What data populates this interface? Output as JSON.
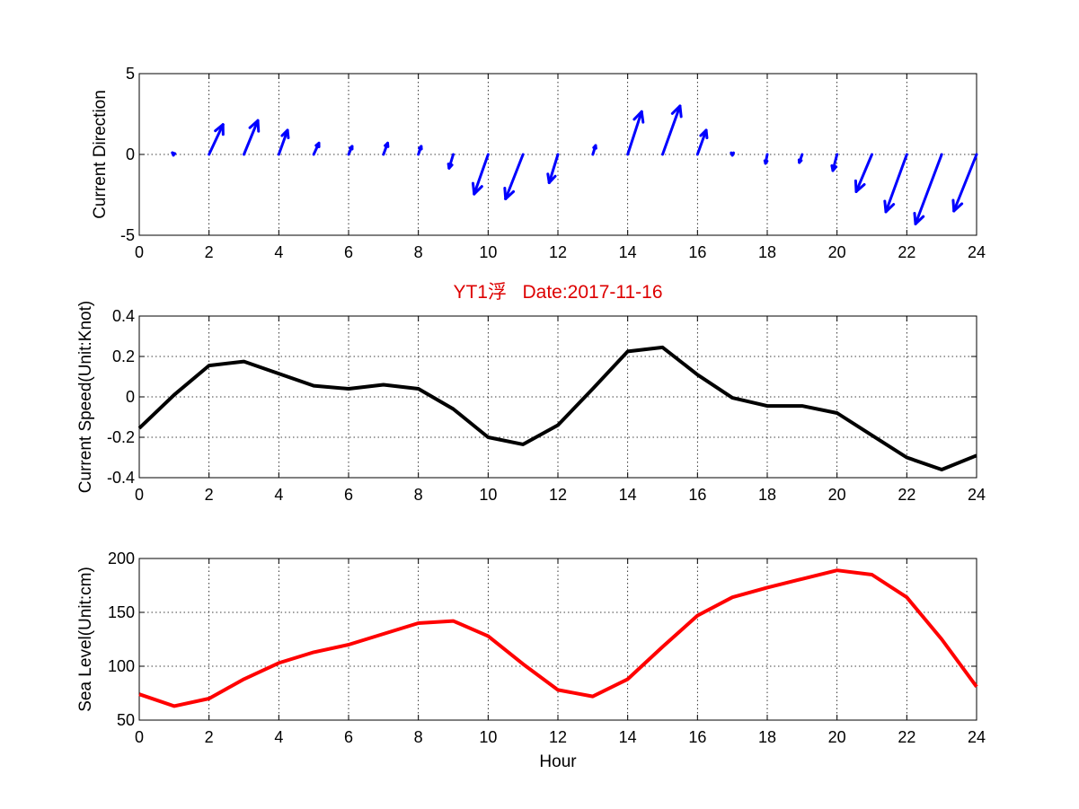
{
  "chart_data": [
    {
      "type": "quiver",
      "ylabel": "Current Direction",
      "xlim": [
        0,
        24
      ],
      "ylim": [
        -5,
        5
      ],
      "xticks": [
        0,
        2,
        4,
        6,
        8,
        10,
        12,
        14,
        16,
        18,
        20,
        22,
        24
      ],
      "yticks": [
        -5,
        0,
        5
      ],
      "grid": true,
      "color": "#0000ff",
      "x": [
        1,
        2,
        3,
        4,
        5,
        6,
        7,
        8,
        9,
        10,
        11,
        12,
        13,
        14,
        15,
        16,
        17,
        18,
        19,
        20,
        21,
        22,
        23,
        24
      ],
      "u": [
        -0.05,
        0.4,
        0.4,
        0.25,
        0.15,
        0.1,
        0.12,
        0.08,
        -0.12,
        -0.4,
        -0.5,
        -0.25,
        0.08,
        0.4,
        0.5,
        0.25,
        0,
        -0.05,
        -0.08,
        -0.12,
        -0.45,
        -0.6,
        -0.75,
        -0.65
      ],
      "v": [
        0.1,
        1.85,
        2.1,
        1.5,
        0.7,
        0.5,
        0.7,
        0.5,
        -0.85,
        -2.45,
        -2.75,
        -1.75,
        0.55,
        2.65,
        3.0,
        1.5,
        -0.05,
        -0.55,
        -0.5,
        -1.0,
        -2.3,
        -3.55,
        -4.3,
        -3.5
      ]
    },
    {
      "type": "line",
      "title": "YT1浮   Date:2017-11-16",
      "title_color": "#dd0000",
      "ylabel": "Current Speed(Unit:Knot)",
      "xlim": [
        0,
        24
      ],
      "ylim": [
        -0.4,
        0.4
      ],
      "xticks": [
        0,
        2,
        4,
        6,
        8,
        10,
        12,
        14,
        16,
        18,
        20,
        22,
        24
      ],
      "yticks": [
        -0.4,
        -0.2,
        0,
        0.2,
        0.4
      ],
      "ytick_labels": [
        "-0.4",
        "-0.2",
        "0",
        "0.2",
        "0.4"
      ],
      "grid": true,
      "color": "#000000",
      "x": [
        0,
        1,
        2,
        3,
        4,
        5,
        6,
        7,
        8,
        9,
        10,
        11,
        12,
        13,
        14,
        15,
        16,
        17,
        18,
        19,
        20,
        21,
        22,
        23,
        24
      ],
      "y": [
        -0.155,
        0.01,
        0.155,
        0.175,
        0.115,
        0.055,
        0.04,
        0.06,
        0.04,
        -0.06,
        -0.2,
        -0.235,
        -0.14,
        0.04,
        0.225,
        0.245,
        0.11,
        -0.005,
        -0.045,
        -0.045,
        -0.08,
        -0.19,
        -0.3,
        -0.36,
        -0.29
      ]
    },
    {
      "type": "line",
      "ylabel": "Sea Level(Unit:cm)",
      "xlabel": "Hour",
      "xlim": [
        0,
        24
      ],
      "ylim": [
        50,
        200
      ],
      "xticks": [
        0,
        2,
        4,
        6,
        8,
        10,
        12,
        14,
        16,
        18,
        20,
        22,
        24
      ],
      "yticks": [
        50,
        100,
        150,
        200
      ],
      "grid": true,
      "color": "#ff0000",
      "x": [
        0,
        1,
        2,
        3,
        4,
        5,
        6,
        7,
        8,
        9,
        10,
        11,
        12,
        13,
        14,
        15,
        16,
        17,
        18,
        19,
        20,
        21,
        22,
        23,
        24
      ],
      "y": [
        74,
        63,
        70,
        88,
        103,
        113,
        120,
        130,
        140,
        142,
        128,
        102,
        78,
        72,
        88,
        118,
        147,
        164,
        173,
        181,
        189,
        185,
        164,
        125,
        81
      ]
    }
  ]
}
